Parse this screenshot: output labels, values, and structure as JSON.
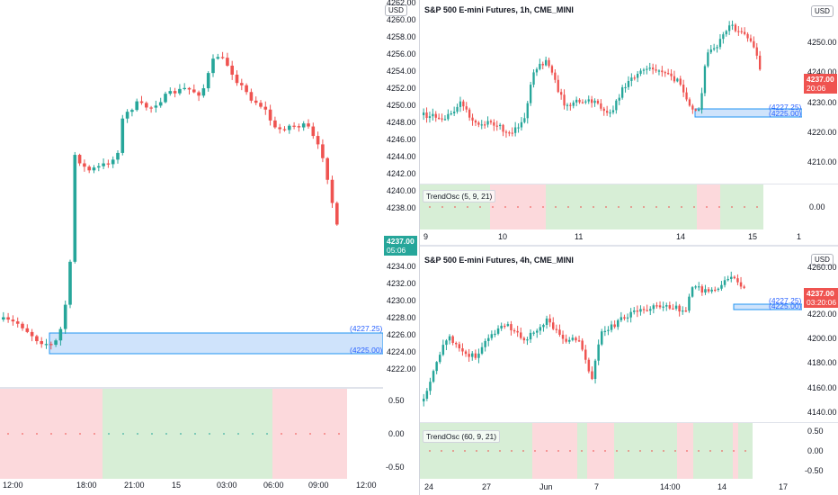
{
  "colors": {
    "up": "#26a69a",
    "down": "#ef5350",
    "zone_fill": "#cfe3fb",
    "zone_stroke": "#2196f3",
    "osc_green": "#d7eed6",
    "osc_red": "#fcd9dc",
    "price_tag_green": "#26a69a",
    "price_tag_red": "#ef5350"
  },
  "left_chart": {
    "currency": "USD",
    "y_ticks": [
      "4260.00",
      "4258.00",
      "4256.00",
      "4254.00",
      "4252.00",
      "4250.00",
      "4248.00",
      "4246.00",
      "4244.00",
      "4242.00",
      "4240.00",
      "4238.00",
      "4234.00",
      "4232.00",
      "4230.00",
      "4228.00",
      "4226.00",
      "4224.00",
      "4222.00"
    ],
    "top_partial_tick": "4262.00",
    "price_tag": {
      "price": "4237.00",
      "countdown": "05:06"
    },
    "zone_top_label": "(4227.25)",
    "zone_bottom_label": "(4225.00)",
    "x_ticks": [
      "12:00",
      "18:00",
      "21:00",
      "15",
      "03:00",
      "06:00",
      "09:00",
      "12:00"
    ],
    "osc_ticks": [
      "0.50",
      "0.00",
      "-0.50"
    ]
  },
  "chart_1h": {
    "title": "S&P 500 E-mini Futures, 1h, CME_MINI",
    "currency": "USD",
    "y_ticks": [
      "4250.00",
      "4240.00",
      "4230.00",
      "4220.00",
      "4210.00"
    ],
    "price_tag": {
      "price": "4237.00",
      "countdown": "20:06"
    },
    "zone_top_label": "(4227.25)",
    "zone_bottom_label": "(4225.00)",
    "osc_label": "TrendOsc (5, 9, 21)",
    "osc_ticks": [
      "0.00"
    ],
    "x_ticks": [
      "9",
      "10",
      "11",
      "14",
      "15",
      "1"
    ]
  },
  "chart_4h": {
    "title": "S&P 500 E-mini Futures, 4h, CME_MINI",
    "currency": "USD",
    "y_ticks": [
      "4260.00",
      "4220.00",
      "4200.00",
      "4180.00",
      "4160.00",
      "4140.00"
    ],
    "price_tag": {
      "price": "4237.00",
      "countdown": "03:20:06"
    },
    "zone_top_label": "(4227.25)",
    "zone_bottom_label": "(4225.00)",
    "osc_label": "TrendOsc (60, 9, 21)",
    "osc_ticks": [
      "0.50",
      "0.00",
      "-0.50"
    ],
    "x_ticks": [
      "24",
      "27",
      "Jun",
      "7",
      "14:00",
      "14",
      "17"
    ]
  }
}
